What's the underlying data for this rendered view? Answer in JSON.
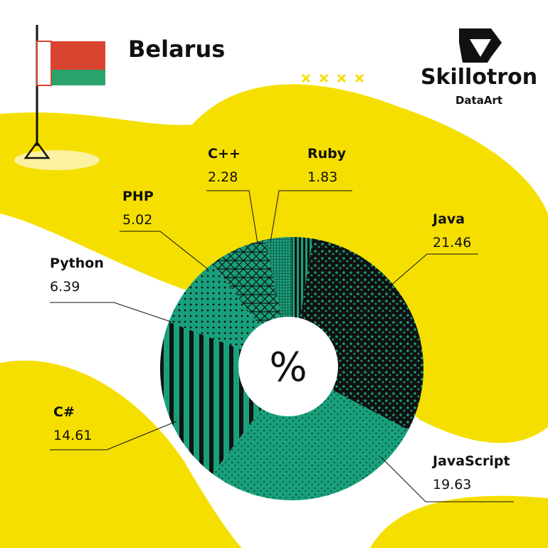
{
  "header": {
    "country": "Belarus",
    "brand": "Skillotron",
    "sub_brand": "DataArt"
  },
  "chart_data": {
    "type": "pie",
    "center_label": "%",
    "categories": [
      "Ruby",
      "Java",
      "JavaScript",
      "C#",
      "Python",
      "PHP",
      "C++"
    ],
    "values": [
      1.83,
      21.46,
      19.63,
      14.61,
      6.39,
      5.02,
      2.28
    ],
    "colors": [
      "#18a07c",
      "#18a07c",
      "#18a07c",
      "#18a07c",
      "#18a07c",
      "#18a07c",
      "#18a07c"
    ]
  }
}
